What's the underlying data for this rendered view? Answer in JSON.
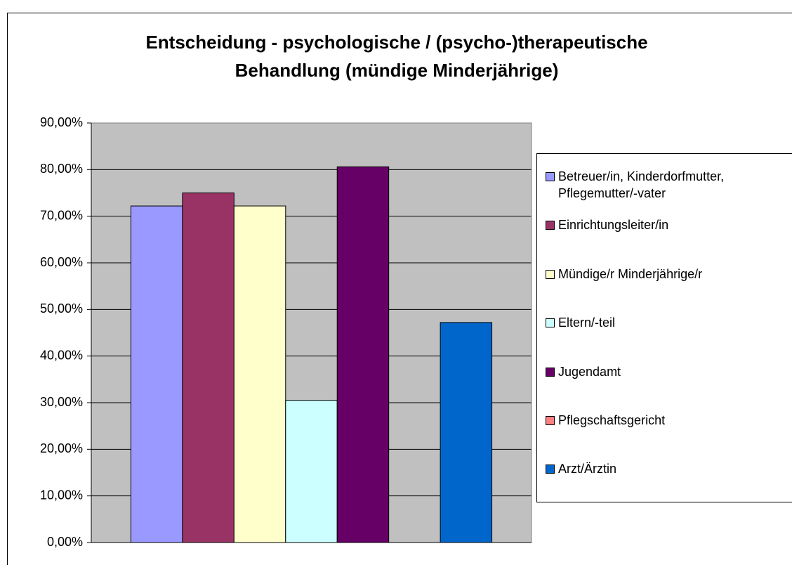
{
  "chart_data": {
    "type": "bar",
    "title": "Entscheidung - psychologische / (psycho-)therapeutische Behandlung (mündige Minderjährige)",
    "categories": [
      null
    ],
    "series": [
      {
        "name": "Betreuer/in, Kinderdorfmutter, Pflegemutter/-vater",
        "color": "#9999ff",
        "values": [
          72.2
        ]
      },
      {
        "name": "Einrichtungsleiter/in",
        "color": "#993366",
        "values": [
          75.0
        ]
      },
      {
        "name": "Mündige/r Minderjährige/r",
        "color": "#ffffcc",
        "values": [
          72.2
        ]
      },
      {
        "name": "Eltern/-teil",
        "color": "#ccffff",
        "values": [
          30.5
        ]
      },
      {
        "name": "Jugendamt",
        "color": "#660066",
        "values": [
          80.6
        ]
      },
      {
        "name": "Pflegschaftsgericht",
        "color": "#ff8080",
        "values": [
          0
        ]
      },
      {
        "name": "Arzt/Ärztin",
        "color": "#0066cc",
        "values": [
          47.2
        ]
      }
    ],
    "ylim": [
      0,
      90
    ],
    "yticks": [
      {
        "value": 0,
        "label": "0,00%"
      },
      {
        "value": 10,
        "label": "10,00%"
      },
      {
        "value": 20,
        "label": "20,00%"
      },
      {
        "value": 30,
        "label": "30,00%"
      },
      {
        "value": 40,
        "label": "40,00%"
      },
      {
        "value": 50,
        "label": "50,00%"
      },
      {
        "value": 60,
        "label": "60,00%"
      },
      {
        "value": 70,
        "label": "70,00%"
      },
      {
        "value": 80,
        "label": "80,00%"
      },
      {
        "value": 90,
        "label": "90,00%"
      }
    ],
    "grid": true,
    "plot_background": "#c0c0c0",
    "legend": "right"
  }
}
